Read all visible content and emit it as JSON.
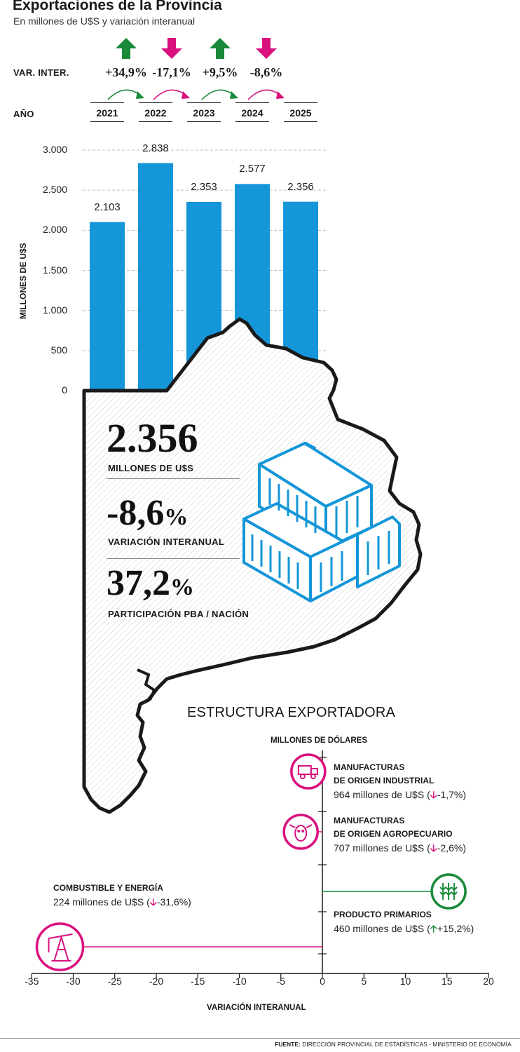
{
  "header": {
    "title": "Exportaciones de la Provincia",
    "subtitle": "En millones de U$S y variación interanual"
  },
  "labels": {
    "var_inter": "VAR. INTER.",
    "anio": "AÑO"
  },
  "colors": {
    "bar": "#1496d8",
    "up": "#1a8a3a",
    "down": "#d9117f",
    "map_stroke": "#1a1a1a"
  },
  "chart_data": [
    {
      "type": "bar",
      "categories": [
        "2021",
        "2022",
        "2023",
        "2024",
        "2025"
      ],
      "values": [
        2103,
        2838,
        2353,
        2577,
        2356
      ],
      "value_labels": [
        "2.103",
        "2.838",
        "2.353",
        "2.577",
        "2.356"
      ],
      "variation": [
        "+34,9%",
        "-17,1%",
        "+9,5%",
        "-8,6%"
      ],
      "variation_direction": [
        "up",
        "down",
        "up",
        "down"
      ],
      "ylabel": "MILLONES DE U$S",
      "ylim": [
        0,
        3000
      ],
      "yticks": [
        0,
        500,
        1000,
        1500,
        2000,
        2500,
        3000
      ],
      "ytick_labels": [
        "0",
        "500",
        "1.000",
        "1.500",
        "2.000",
        "2.500",
        "3.000"
      ],
      "grid": true
    },
    {
      "type": "bar",
      "title": "ESTRUCTURA EXPORTADORA",
      "subtitle": "MILLONES DE DÓLARES",
      "xlabel": "VARIACIÓN INTERANUAL",
      "xlim": [
        -35,
        20
      ],
      "xticks": [
        -35,
        -30,
        -25,
        -20,
        -15,
        -10,
        -5,
        0,
        5,
        10,
        15,
        20
      ],
      "categories": [
        "MANUFACTURAS DE ORIGEN INDUSTRIAL",
        "MANUFACTURAS DE ORIGEN AGROPECUARIO",
        "PRODUCTO PRIMARIOS",
        "COMBUSTIBLE Y ENERGÍA"
      ],
      "values": [
        -1.7,
        -2.6,
        15.2,
        -31.6
      ],
      "amounts": [
        964,
        707,
        460,
        224
      ]
    }
  ],
  "stats": [
    {
      "value": "2.356",
      "caption": "MILLONES DE U$S"
    },
    {
      "value": "-8,6",
      "unit": "%",
      "caption": "VARIACIÓN INTERANUAL"
    },
    {
      "value": "37,2",
      "unit": "%",
      "caption": "PARTICIPACIÓN PBA / NACIÓN"
    }
  ],
  "structure": {
    "industrial": {
      "name1": "MANUFACTURAS",
      "name2": "DE ORIGEN INDUSTRIAL",
      "pre": "964 millones de U$S (",
      "arrow": "🡣",
      "pct": "-1,7%)",
      "icon": "truck-icon"
    },
    "agro": {
      "name1": "MANUFACTURAS",
      "name2": "DE ORIGEN AGROPECUARIO",
      "pre": "707 millones de U$S (",
      "arrow": "🡣",
      "pct": "-2,6%)",
      "icon": "cow-icon"
    },
    "primarios": {
      "name1": "PRODUCTO PRIMARIOS",
      "pre": "460 millones de U$S (",
      "arrow": "🡡",
      "pct": "+15,2%)",
      "icon": "wheat-icon"
    },
    "energia": {
      "name1": "COMBUSTIBLE Y ENERGÍA",
      "pre": "224 millones de U$S (",
      "arrow": "🡣",
      "pct": "-31,6%)",
      "icon": "oil-pump-icon"
    }
  },
  "x_tick_labels": [
    "-35",
    "-30",
    "-25",
    "-20",
    "-15",
    "-10",
    "-5",
    "0",
    "5",
    "10",
    "15",
    "20"
  ],
  "source": {
    "label": "FUENTE:",
    "text": "DIRECCIÓN PROVINCIAL DE ESTADÍSTICAS - MINISTERIO DE ECONOMÍA"
  }
}
